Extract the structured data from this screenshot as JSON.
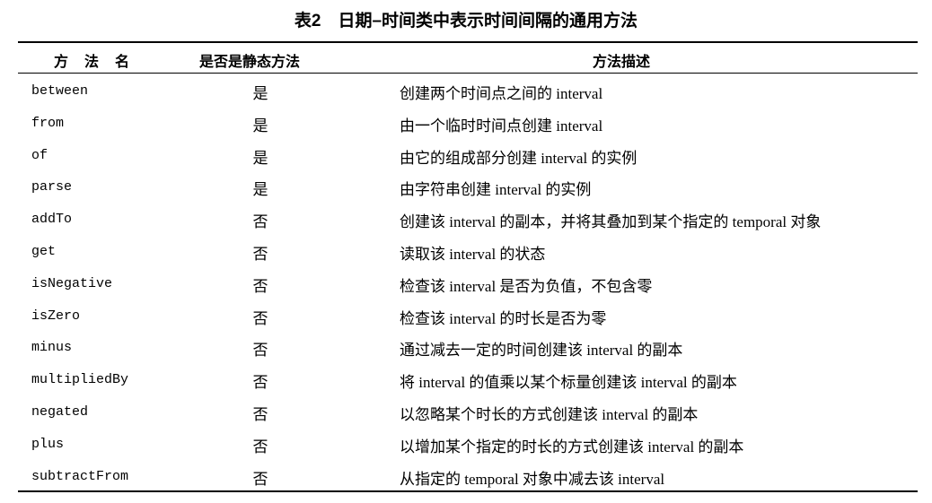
{
  "title": "表2　日期–时间类中表示时间间隔的通用方法",
  "headers": [
    "方法名",
    "是否是静态方法",
    "方法描述"
  ],
  "rows": [
    {
      "method": "between",
      "static": "是",
      "desc": "创建两个时间点之间的 interval"
    },
    {
      "method": "from",
      "static": "是",
      "desc": "由一个临时时间点创建 interval"
    },
    {
      "method": "of",
      "static": "是",
      "desc": "由它的组成部分创建 interval 的实例"
    },
    {
      "method": "parse",
      "static": "是",
      "desc": "由字符串创建 interval 的实例"
    },
    {
      "method": "addTo",
      "static": "否",
      "desc": "创建该 interval 的副本，并将其叠加到某个指定的 temporal 对象"
    },
    {
      "method": "get",
      "static": "否",
      "desc": "读取该 interval 的状态"
    },
    {
      "method": "isNegative",
      "static": "否",
      "desc": "检查该 interval 是否为负值，不包含零"
    },
    {
      "method": "isZero",
      "static": "否",
      "desc": "检查该 interval 的时长是否为零"
    },
    {
      "method": "minus",
      "static": "否",
      "desc": "通过减去一定的时间创建该 interval 的副本"
    },
    {
      "method": "multipliedBy",
      "static": "否",
      "desc": "将 interval 的值乘以某个标量创建该 interval 的副本"
    },
    {
      "method": "negated",
      "static": "否",
      "desc": "以忽略某个时长的方式创建该 interval 的副本"
    },
    {
      "method": "plus",
      "static": "否",
      "desc": "以增加某个指定的时长的方式创建该 interval 的副本"
    },
    {
      "method": "subtractFrom",
      "static": "否",
      "desc": "从指定的 temporal 对象中减去该 interval"
    }
  ]
}
